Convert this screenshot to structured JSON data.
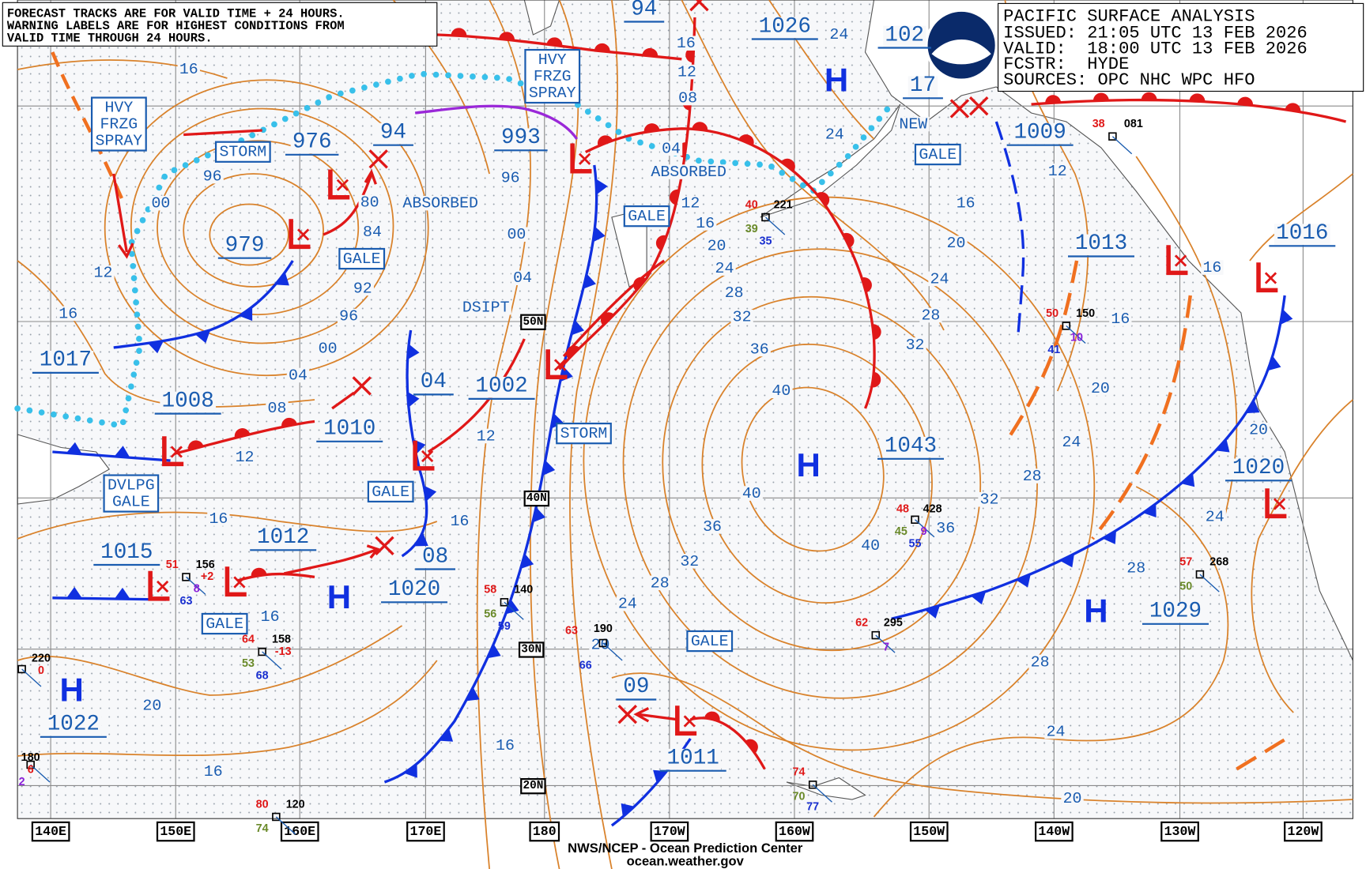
{
  "forecast_note": [
    "FORECAST TRACKS ARE FOR VALID TIME + 24 HOURS.",
    "WARNING LABELS ARE FOR HIGHEST CONDITIONS FROM",
    "VALID TIME THROUGH 24 HOURS."
  ],
  "info_box": [
    "PACIFIC SURFACE ANALYSIS",
    "ISSUED: 21:05 UTC 13 FEB 2026",
    "VALID:  18:00 UTC 13 FEB 2026",
    "FCSTR:  HYDE",
    "SOURCES: OPC NHC WPC HFO"
  ],
  "pressure_centers": [
    "1026",
    "102",
    "17",
    "1009",
    "1013",
    "1016",
    "1017",
    "1008",
    "1010",
    "1002",
    "04",
    "976",
    "94",
    "94",
    "993",
    "979",
    "1043",
    "1020",
    "1015",
    "1012",
    "08",
    "1020",
    "1029",
    "1022",
    "09",
    "1011"
  ],
  "isobar_labels": [
    "16",
    "96",
    "00",
    "12",
    "16",
    "00",
    "04",
    "08",
    "12",
    "16",
    "16",
    "20",
    "16",
    "80",
    "84",
    "92",
    "96",
    "96",
    "00",
    "04",
    "12",
    "16",
    "16",
    "16",
    "12",
    "08",
    "04",
    "12",
    "16",
    "20",
    "24",
    "28",
    "32",
    "36",
    "40",
    "40",
    "36",
    "32",
    "28",
    "24",
    "20",
    "24",
    "24",
    "16",
    "20",
    "24",
    "28",
    "32",
    "12",
    "16",
    "16",
    "20",
    "24",
    "28",
    "32",
    "36",
    "40",
    "28",
    "24",
    "20",
    "28",
    "24",
    "20"
  ],
  "warnings": [
    [
      "HVY",
      "FRZG",
      "SPRAY"
    ],
    [
      "HVY",
      "FRZG",
      "SPRAY"
    ],
    [
      "STORM"
    ],
    [
      "GALE"
    ],
    [
      "GALE"
    ],
    [
      "GALE"
    ],
    [
      "GALE"
    ],
    [
      "STORM"
    ],
    [
      "DVLPG",
      "GALE"
    ],
    [
      "GALE"
    ],
    [
      "GALE"
    ]
  ],
  "notes": [
    "ABSORBED",
    "ABSORBED",
    "DSIPT",
    "NEW"
  ],
  "highs": [
    "H",
    "H",
    "H",
    "H",
    "H"
  ],
  "latitudes": [
    "50N",
    "40N",
    "30N",
    "20N"
  ],
  "longitudes": [
    "140E",
    "150E",
    "160E",
    "170E",
    "180",
    "170W",
    "160W",
    "150W",
    "140W",
    "130W",
    "120W"
  ],
  "stations": [
    [
      "48",
      "428",
      "45",
      "9",
      "55"
    ],
    [
      "62",
      "295",
      "7"
    ],
    [
      "57",
      "268",
      "50"
    ],
    [
      "64",
      "158",
      "53",
      "68",
      "-13"
    ],
    [
      "51",
      "156",
      "63",
      "8",
      "+2"
    ],
    [
      "58",
      "140",
      "56",
      "59"
    ],
    [
      "50",
      "150",
      "41",
      "10"
    ],
    [
      "80",
      "120",
      "74"
    ],
    [
      "74",
      "70",
      "77"
    ],
    [
      "40",
      "221",
      "39",
      "35"
    ],
    [
      "38",
      "081"
    ],
    [
      "63",
      "190",
      "66"
    ],
    [
      "220",
      "0"
    ],
    [
      "180",
      "6",
      "2"
    ]
  ],
  "footer": [
    "NWS/NCEP - Ocean Prediction Center",
    "ocean.weather.gov"
  ]
}
